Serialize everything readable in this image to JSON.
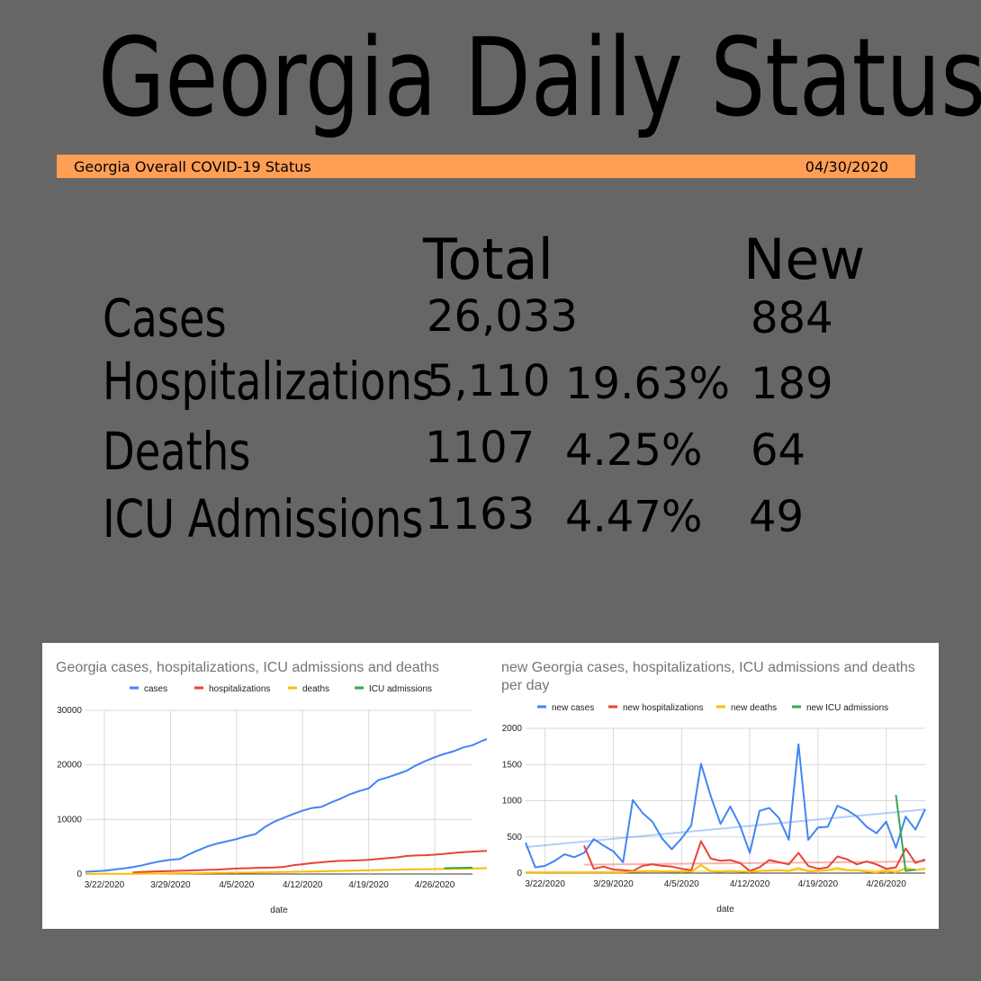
{
  "title": "Georgia Daily Status",
  "banner": {
    "label": "Georgia Overall COVID-19 Status",
    "date": "04/30/2020"
  },
  "table": {
    "col_total": "Total",
    "col_new": "New",
    "rows": [
      {
        "label": "Cases",
        "total": "26,033",
        "pct": "",
        "new": "884"
      },
      {
        "label": "Hospitalizations",
        "total": "5,110",
        "pct": "19.63%",
        "new": "189"
      },
      {
        "label": "Deaths",
        "total": "1107",
        "pct": "4.25%",
        "new": "64"
      },
      {
        "label": "ICU Admissions",
        "total": "1163",
        "pct": "4.47%",
        "new": "49"
      }
    ]
  },
  "chart_data": [
    {
      "type": "line",
      "title": "Georgia cases, hospitalizations, ICU admissions and deaths",
      "xlabel": "date",
      "ylabel": "",
      "ylim": [
        0,
        30000
      ],
      "yticks": [
        0,
        10000,
        20000,
        30000
      ],
      "xtick_labels": [
        "3/22/2020",
        "3/29/2020",
        "4/5/2020",
        "4/12/2020",
        "4/19/2020",
        "4/26/2020"
      ],
      "x_start": "3/20/2020",
      "x_end": "4/30/2020",
      "legend_position": "top",
      "grid": true,
      "series": [
        {
          "name": "cases",
          "color": "#4285f4",
          "start": "3/20/2020",
          "values": [
            420,
            500,
            600,
            800,
            1000,
            1250,
            1600,
            2000,
            2350,
            2600,
            2750,
            3650,
            4400,
            5100,
            5600,
            6000,
            6400,
            6900,
            7300,
            8600,
            9600,
            10300,
            11000,
            11600,
            12100,
            12300,
            13100,
            13800,
            14600,
            15200,
            15700,
            17200,
            17700,
            18300,
            18900,
            19900,
            20700,
            21400,
            22000,
            22500,
            23200,
            23600,
            24400,
            25000,
            26033
          ]
        },
        {
          "name": "hospitalizations",
          "color": "#ea4335",
          "start": "3/25/2020",
          "values": [
            300,
            380,
            450,
            500,
            550,
            600,
            650,
            700,
            750,
            800,
            900,
            1000,
            1050,
            1100,
            1150,
            1200,
            1300,
            1600,
            1800,
            2000,
            2150,
            2300,
            2400,
            2450,
            2500,
            2600,
            2750,
            2900,
            3050,
            3300,
            3400,
            3450,
            3550,
            3700,
            3850,
            4000,
            4100,
            4200,
            4250,
            4300,
            4400,
            4700,
            4900,
            5110
          ]
        },
        {
          "name": "deaths",
          "color": "#fbbc04",
          "start": "3/20/2020",
          "values": [
            10,
            20,
            25,
            30,
            40,
            55,
            70,
            80,
            90,
            100,
            110,
            130,
            150,
            170,
            190,
            210,
            230,
            250,
            280,
            310,
            340,
            370,
            400,
            430,
            460,
            490,
            520,
            560,
            600,
            640,
            680,
            720,
            750,
            780,
            820,
            860,
            880,
            900,
            920,
            940,
            960,
            1000,
            1050,
            1080,
            1107
          ]
        },
        {
          "name": "ICU admissions",
          "color": "#34a853",
          "start": "4/27/2020",
          "values": [
            1050,
            1100,
            1130,
            1163
          ]
        }
      ]
    },
    {
      "type": "line",
      "title": "new Georgia cases, hospitalizations, ICU admissions and deaths per day",
      "xlabel": "date",
      "ylabel": "",
      "ylim": [
        0,
        2000
      ],
      "yticks": [
        0,
        500,
        1000,
        1500,
        2000
      ],
      "xtick_labels": [
        "3/22/2020",
        "3/29/2020",
        "4/5/2020",
        "4/12/2020",
        "4/19/2020",
        "4/26/2020"
      ],
      "x_start": "3/20/2020",
      "x_end": "4/30/2020",
      "legend_position": "top",
      "grid": true,
      "trendlines": true,
      "series": [
        {
          "name": "new cases",
          "color": "#4285f4",
          "start": "3/20/2020",
          "values": [
            420,
            80,
            100,
            170,
            260,
            220,
            280,
            470,
            380,
            300,
            150,
            1010,
            830,
            710,
            480,
            330,
            480,
            660,
            1510,
            1060,
            680,
            920,
            660,
            280,
            860,
            900,
            760,
            460,
            1780,
            460,
            630,
            640,
            930,
            870,
            780,
            640,
            550,
            710,
            350,
            780,
            600,
            884
          ]
        },
        {
          "name": "new hospitalizations",
          "color": "#ea4335",
          "start": "3/26/2020",
          "values": [
            380,
            60,
            90,
            50,
            40,
            30,
            100,
            120,
            100,
            90,
            60,
            40,
            440,
            200,
            170,
            180,
            140,
            30,
            80,
            180,
            150,
            120,
            280,
            100,
            60,
            80,
            230,
            190,
            120,
            160,
            120,
            60,
            80,
            340,
            140,
            189
          ]
        },
        {
          "name": "new deaths",
          "color": "#fbbc04",
          "start": "3/20/2020",
          "values": [
            10,
            10,
            10,
            10,
            10,
            10,
            10,
            10,
            10,
            10,
            10,
            20,
            25,
            30,
            25,
            20,
            20,
            20,
            110,
            25,
            20,
            30,
            20,
            15,
            30,
            35,
            40,
            30,
            70,
            25,
            30,
            40,
            70,
            40,
            40,
            20,
            10,
            30,
            10,
            70,
            40,
            64
          ]
        },
        {
          "name": "new ICU admissions",
          "color": "#34a853",
          "start": "4/27/2020",
          "values": [
            1080,
            30,
            49
          ]
        }
      ]
    }
  ]
}
